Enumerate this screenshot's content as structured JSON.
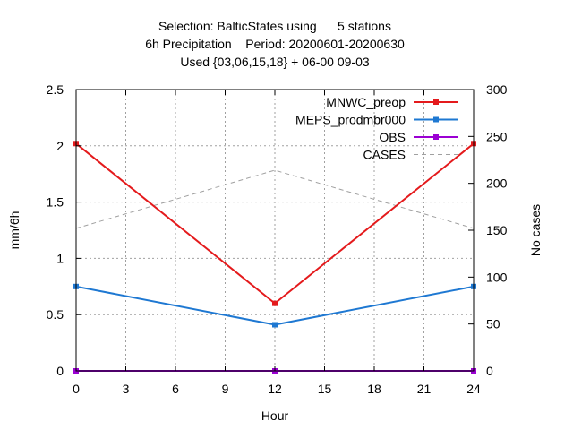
{
  "chart_data": {
    "type": "line",
    "title_lines": [
      "Selection: BalticStates using      5 stations",
      "6h Precipitation    Period: 20200601-20200630",
      "Used {03,06,15,18} + 06-00 09-03"
    ],
    "xlabel": "Hour",
    "ylabel": "mm/6h",
    "y2label": "No cases",
    "xlim": [
      0,
      24
    ],
    "ylim": [
      0,
      2.5
    ],
    "y2lim": [
      0,
      300
    ],
    "xticks": [
      0,
      3,
      6,
      9,
      12,
      15,
      18,
      21,
      24
    ],
    "yticks": [
      0,
      0.5,
      1,
      1.5,
      2,
      2.5
    ],
    "y2ticks": [
      0,
      50,
      100,
      150,
      200,
      250,
      300
    ],
    "ytick_labels": [
      "0",
      "0.5",
      "1",
      "1.5",
      "2",
      "2.5"
    ],
    "grid": true,
    "legend_position": "top-right",
    "x": [
      0,
      12,
      24
    ],
    "series": [
      {
        "name": "MNWC_preop",
        "axis": "y",
        "values": [
          2.02,
          0.6,
          2.02
        ],
        "color": "#e41a1c",
        "style": "solid",
        "marker": "square"
      },
      {
        "name": "MEPS_prodmbr000",
        "axis": "y",
        "values": [
          0.75,
          0.41,
          0.75
        ],
        "color": "#1e78d2",
        "style": "solid",
        "marker": "square"
      },
      {
        "name": "OBS",
        "axis": "y",
        "values": [
          0,
          0,
          0
        ],
        "color": "#9b00d3",
        "style": "solid",
        "marker": "square"
      },
      {
        "name": "CASES",
        "axis": "y2",
        "values": [
          152,
          214,
          152
        ],
        "color": "#a0a0a0",
        "style": "dashed",
        "marker": "none"
      }
    ]
  }
}
